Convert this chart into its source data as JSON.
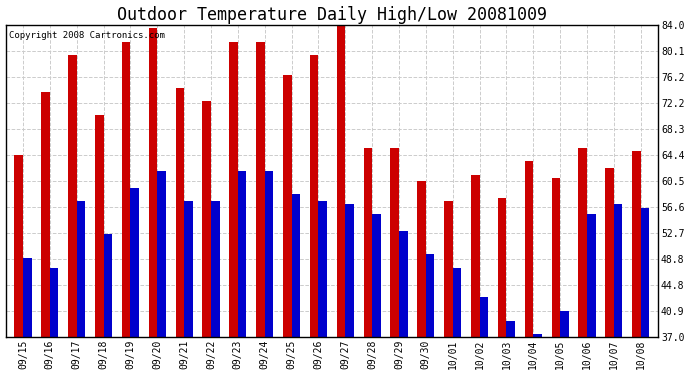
{
  "title": "Outdoor Temperature Daily High/Low 20081009",
  "copyright_text": "Copyright 2008 Cartronics.com",
  "dates": [
    "09/15",
    "09/16",
    "09/17",
    "09/18",
    "09/19",
    "09/20",
    "09/21",
    "09/22",
    "09/23",
    "09/24",
    "09/25",
    "09/26",
    "09/27",
    "09/28",
    "09/29",
    "09/30",
    "10/01",
    "10/02",
    "10/03",
    "10/04",
    "10/05",
    "10/06",
    "10/07",
    "10/08"
  ],
  "highs": [
    64.4,
    74.0,
    79.5,
    70.5,
    81.5,
    83.5,
    74.5,
    72.5,
    81.5,
    81.5,
    76.5,
    79.5,
    85.0,
    65.5,
    65.5,
    60.5,
    57.5,
    61.5,
    58.0,
    63.5,
    61.0,
    65.5,
    62.5,
    65.0
  ],
  "lows": [
    49.0,
    47.5,
    57.5,
    52.5,
    59.5,
    62.0,
    57.5,
    57.5,
    62.0,
    62.0,
    58.5,
    57.5,
    57.0,
    55.5,
    53.0,
    49.5,
    47.5,
    43.0,
    39.5,
    37.5,
    41.0,
    55.5,
    57.0,
    56.5
  ],
  "high_color": "#cc0000",
  "low_color": "#0000cc",
  "background_color": "#ffffff",
  "grid_color": "#cccccc",
  "ymin": 37.0,
  "ymax": 84.0,
  "yticks": [
    37.0,
    40.9,
    44.8,
    48.8,
    52.7,
    56.6,
    60.5,
    64.4,
    68.3,
    72.2,
    76.2,
    80.1,
    84.0
  ],
  "bar_width": 0.32,
  "title_fontsize": 12,
  "tick_fontsize": 7,
  "copyright_fontsize": 6.5
}
